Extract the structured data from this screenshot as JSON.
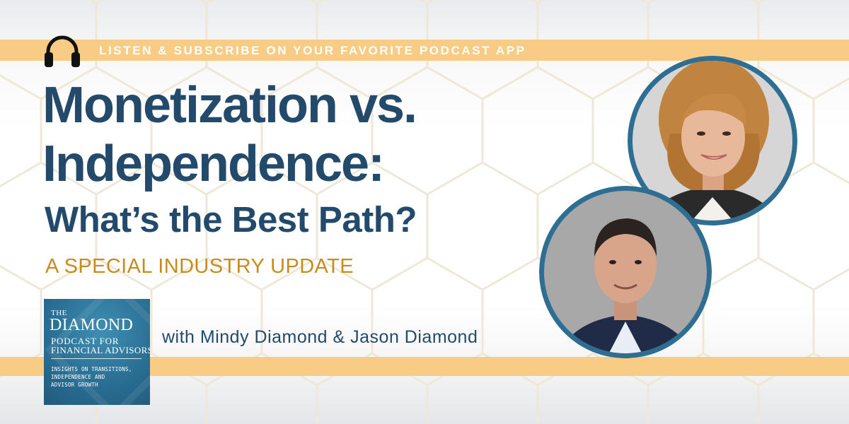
{
  "banner": {
    "cta": "LISTEN & SUBSCRIBE ON YOUR FAVORITE PODCAST APP",
    "title_line1": "Monetization vs.",
    "title_line2": "Independence:",
    "subtitle": "What’s the Best Path?",
    "kicker": "A SPECIAL INDUSTRY UPDATE",
    "hosts": "with Mindy Diamond & Jason Diamond"
  },
  "logo": {
    "the": "THE",
    "name": "DIAMOND",
    "podcast_line1": "PODCAST FOR",
    "podcast_line2": "FINANCIAL ADVISORS",
    "tagline_line1": "INSIGHTS ON TRANSITIONS,",
    "tagline_line2": "INDEPENDENCE AND",
    "tagline_line3": "ADVISOR GROWTH"
  },
  "icons": {
    "cta_icon": "headphones-icon"
  },
  "colors": {
    "title": "#234a6b",
    "accent_band": "#f8cc85",
    "kicker": "#c98c1a",
    "logo_bg": "#2a6f94",
    "photo_ring": "#2d6e92"
  }
}
